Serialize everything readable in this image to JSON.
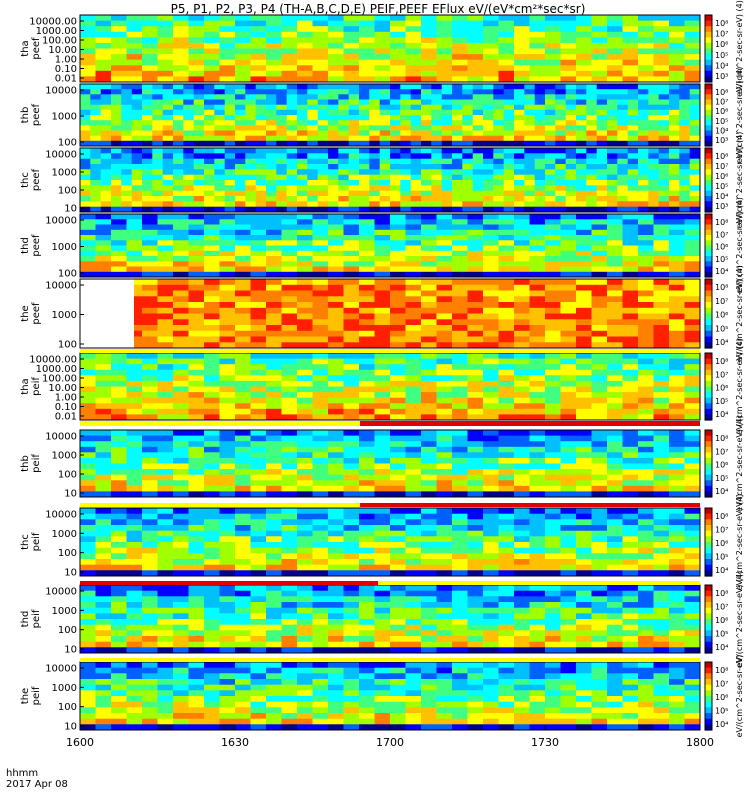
{
  "title": "P5, P1, P2, P3, P4 (TH-A,B,C,D,E) PEIF,PEEF EFlux eV/(eV*cm²*sec*sr)",
  "time_axis": {
    "label_1": "hhmm",
    "label_2": "2017 Apr 08",
    "ticks": [
      "1600",
      "1630",
      "1700",
      "1730",
      "1800"
    ]
  },
  "chart_data": [
    {
      "type": "heatmap",
      "ylabel": [
        "tha",
        "peef"
      ],
      "yticks": [
        "10000.00",
        "1000.00",
        "100.00",
        "10.00",
        "1.00",
        "0.10",
        "0.01"
      ],
      "cb_label": "eV/(cm^2-sec-sr-eV) (4)",
      "cb_ticks": [
        "10⁸",
        "10⁷",
        "10⁶",
        "10⁵",
        "10⁴",
        "10³"
      ]
    },
    {
      "type": "heatmap",
      "ylabel": [
        "thb",
        "peef"
      ],
      "yticks": [
        "10000",
        "1000",
        "100"
      ],
      "cb_label": "eV/(cm^2-sec-sr-eV) (4)",
      "cb_ticks": [
        "10⁸",
        "10⁷",
        "10⁶",
        "10⁵",
        "10⁴",
        "10³"
      ]
    },
    {
      "type": "heatmap",
      "ylabel": [
        "thc",
        "peef"
      ],
      "yticks": [
        "10000",
        "1000",
        "100",
        "10"
      ],
      "cb_label": "eV/(cm^2-sec-sr-eV) (4)",
      "cb_ticks": [
        "10⁸",
        "10⁷",
        "10⁶",
        "10⁵",
        "10⁴",
        "10³"
      ]
    },
    {
      "type": "heatmap",
      "ylabel": [
        "thd",
        "peef"
      ],
      "yticks": [
        "10000",
        "1000",
        "100"
      ],
      "cb_label": "eV/(cm^2-sec-sr-eV) (4)",
      "cb_ticks": [
        "10⁸",
        "10⁷",
        "10⁶",
        "10⁵",
        "10⁴"
      ]
    },
    {
      "type": "heatmap",
      "ylabel": [
        "the",
        "peef"
      ],
      "yticks": [
        "10000",
        "1000",
        "100"
      ],
      "cb_label": "eV/(cm^2-sec-sr-eV) (4)",
      "cb_ticks": [
        "10⁸",
        "10⁷",
        "10⁶",
        "10⁵",
        "10⁴"
      ]
    },
    {
      "type": "heatmap",
      "ylabel": [
        "tha",
        "peif"
      ],
      "yticks": [
        "10000.00",
        "1000.00",
        "100.00",
        "10.00",
        "1.00",
        "0.10",
        "0.01"
      ],
      "cb_label": "eV/(cm^2-sec-sr-eV) (4)",
      "cb_ticks": [
        "10⁸",
        "10⁷",
        "10⁶",
        "10⁵",
        "10⁴"
      ]
    },
    {
      "type": "heatmap",
      "ylabel": [
        "thb",
        "peif"
      ],
      "yticks": [
        "10000",
        "1000",
        "100",
        "10"
      ],
      "cb_label": "eV/(cm^2-sec-sr-eV) (4)",
      "cb_ticks": [
        "10⁸",
        "10⁷",
        "10⁶",
        "10⁵",
        "10⁴"
      ]
    },
    {
      "type": "heatmap",
      "ylabel": [
        "thc",
        "peif"
      ],
      "yticks": [
        "10000",
        "1000",
        "100",
        "10"
      ],
      "cb_label": "eV/(cm^2-sec-sr-eV) (4)",
      "cb_ticks": [
        "10⁸",
        "10⁷",
        "10⁶",
        "10⁵",
        "10⁴"
      ]
    },
    {
      "type": "heatmap",
      "ylabel": [
        "thd",
        "peif"
      ],
      "yticks": [
        "10000",
        "1000",
        "100",
        "10"
      ],
      "cb_label": "eV/(cm^2-sec-sr-eV) (4)",
      "cb_ticks": [
        "10⁸",
        "10⁷",
        "10⁶",
        "10⁵",
        "10⁴"
      ]
    },
    {
      "type": "heatmap",
      "ylabel": [
        "the",
        "peif"
      ],
      "yticks": [
        "10000",
        "1000",
        "100",
        "10"
      ],
      "cb_label": "eV/(cm^2-sec-sr-eV)",
      "cb_ticks": [
        "10⁸",
        "10⁷",
        "10⁶",
        "10⁵",
        "10⁴"
      ]
    }
  ]
}
